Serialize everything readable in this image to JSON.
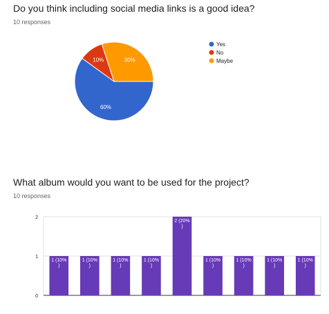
{
  "questions": [
    {
      "title": "Do you think including social media links is a good idea?",
      "responses": "10 responses"
    },
    {
      "title": "What album would you want to be used for the project?",
      "responses": "10 responses"
    }
  ],
  "chart_data": [
    {
      "type": "pie",
      "labels": [
        "Yes",
        "No",
        "Maybe"
      ],
      "values": [
        60,
        10,
        30
      ],
      "slice_labels": [
        "60%",
        "10%",
        "30%"
      ],
      "colors": [
        "#3366cc",
        "#dc3912",
        "#ff9900"
      ],
      "legend": "right"
    },
    {
      "type": "bar",
      "categories": [
        "",
        "",
        "",
        "",
        "",
        "",
        "",
        "",
        ""
      ],
      "values": [
        1,
        1,
        1,
        1,
        2,
        1,
        1,
        1,
        1
      ],
      "data_labels": [
        "1 (10%\n)",
        "1 (10%\n)",
        "1 (10%\n)",
        "1 (10%\n)",
        "2 (20%\n)",
        "1 (10%\n)",
        "1 (10%\n)",
        "1 (10%\n)",
        "1 (10%\n)"
      ],
      "ylim": [
        0,
        2
      ],
      "yticks": [
        "0",
        "1",
        "2"
      ],
      "grid": true,
      "color": "#673ab7"
    }
  ]
}
